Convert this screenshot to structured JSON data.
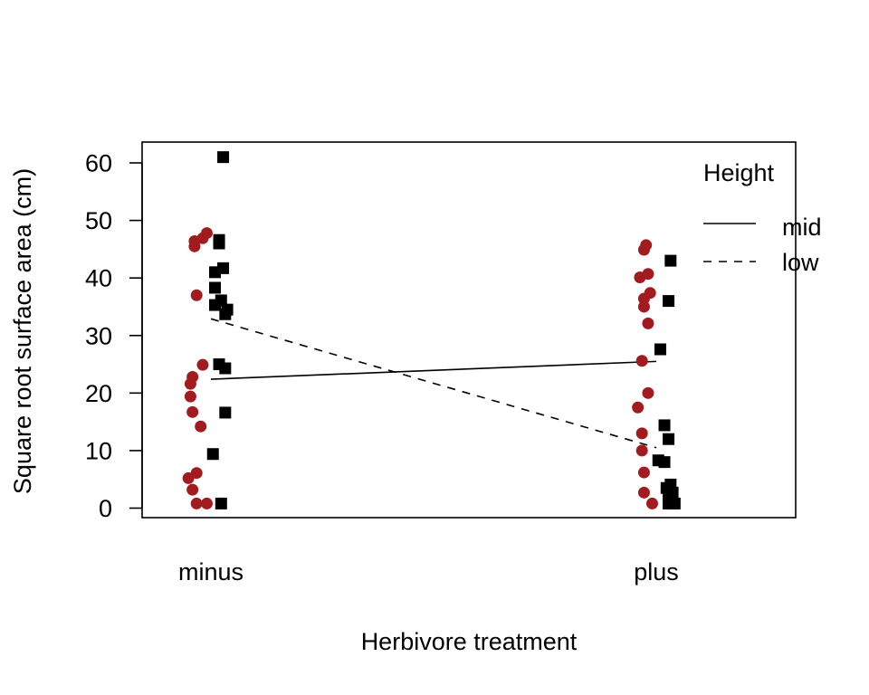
{
  "chart_data": {
    "type": "scatter",
    "title": "",
    "xlabel": "Herbivore treatment",
    "ylabel": "Square root surface area (cm)",
    "categories": [
      "minus",
      "plus"
    ],
    "ylim": [
      -1,
      64
    ],
    "yticks": [
      0,
      10,
      20,
      30,
      40,
      50,
      60
    ],
    "grid": false,
    "legend": {
      "title": "Height",
      "position": "top-right",
      "entries": [
        {
          "label": "mid",
          "line": "solid"
        },
        {
          "label": "low",
          "line": "dashed"
        }
      ]
    },
    "series": [
      {
        "name": "mid",
        "marker": "circle",
        "color": "#A11B1F",
        "line": "solid",
        "mean_line": [
          22.4,
          25.5
        ],
        "points": [
          {
            "category": "minus",
            "jitter": -0.08,
            "value": 46.4
          },
          {
            "category": "minus",
            "jitter": -0.08,
            "value": 45.5
          },
          {
            "category": "minus",
            "jitter": -0.04,
            "value": 46.9
          },
          {
            "category": "minus",
            "jitter": -0.02,
            "value": 47.8
          },
          {
            "category": "minus",
            "jitter": -0.07,
            "value": 37.0
          },
          {
            "category": "minus",
            "jitter": -0.04,
            "value": 24.9
          },
          {
            "category": "minus",
            "jitter": -0.09,
            "value": 22.8
          },
          {
            "category": "minus",
            "jitter": -0.1,
            "value": 21.6
          },
          {
            "category": "minus",
            "jitter": -0.1,
            "value": 19.4
          },
          {
            "category": "minus",
            "jitter": -0.09,
            "value": 16.7
          },
          {
            "category": "minus",
            "jitter": -0.05,
            "value": 14.2
          },
          {
            "category": "minus",
            "jitter": -0.11,
            "value": 5.2
          },
          {
            "category": "minus",
            "jitter": -0.07,
            "value": 6.1
          },
          {
            "category": "minus",
            "jitter": -0.09,
            "value": 3.2
          },
          {
            "category": "minus",
            "jitter": -0.07,
            "value": 0.8
          },
          {
            "category": "minus",
            "jitter": -0.02,
            "value": 0.8
          },
          {
            "category": "plus",
            "jitter": -0.06,
            "value": 44.9
          },
          {
            "category": "plus",
            "jitter": -0.05,
            "value": 45.7
          },
          {
            "category": "plus",
            "jitter": -0.08,
            "value": 40.1
          },
          {
            "category": "plus",
            "jitter": -0.04,
            "value": 40.7
          },
          {
            "category": "plus",
            "jitter": -0.06,
            "value": 36.4
          },
          {
            "category": "plus",
            "jitter": -0.03,
            "value": 37.4
          },
          {
            "category": "plus",
            "jitter": -0.06,
            "value": 35.0
          },
          {
            "category": "plus",
            "jitter": -0.04,
            "value": 32.1
          },
          {
            "category": "plus",
            "jitter": -0.07,
            "value": 25.6
          },
          {
            "category": "plus",
            "jitter": -0.04,
            "value": 20.0
          },
          {
            "category": "plus",
            "jitter": -0.09,
            "value": 17.5
          },
          {
            "category": "plus",
            "jitter": -0.07,
            "value": 13.0
          },
          {
            "category": "plus",
            "jitter": -0.07,
            "value": 10.0
          },
          {
            "category": "plus",
            "jitter": -0.06,
            "value": 6.2
          },
          {
            "category": "plus",
            "jitter": -0.06,
            "value": 2.7
          },
          {
            "category": "plus",
            "jitter": -0.02,
            "value": 0.8
          }
        ]
      },
      {
        "name": "low",
        "marker": "square",
        "color": "#000000",
        "line": "dashed",
        "mean_line": [
          32.9,
          10.5
        ],
        "points": [
          {
            "category": "minus",
            "jitter": 0.06,
            "value": 61.0
          },
          {
            "category": "minus",
            "jitter": 0.04,
            "value": 46.0
          },
          {
            "category": "minus",
            "jitter": 0.04,
            "value": 46.6
          },
          {
            "category": "minus",
            "jitter": 0.06,
            "value": 41.7
          },
          {
            "category": "minus",
            "jitter": 0.02,
            "value": 41.0
          },
          {
            "category": "minus",
            "jitter": 0.02,
            "value": 38.3
          },
          {
            "category": "minus",
            "jitter": 0.05,
            "value": 36.1
          },
          {
            "category": "minus",
            "jitter": 0.02,
            "value": 35.3
          },
          {
            "category": "minus",
            "jitter": 0.08,
            "value": 34.5
          },
          {
            "category": "minus",
            "jitter": 0.07,
            "value": 33.7
          },
          {
            "category": "minus",
            "jitter": 0.04,
            "value": 25.0
          },
          {
            "category": "minus",
            "jitter": 0.07,
            "value": 24.3
          },
          {
            "category": "minus",
            "jitter": 0.07,
            "value": 16.6
          },
          {
            "category": "minus",
            "jitter": 0.01,
            "value": 9.4
          },
          {
            "category": "minus",
            "jitter": 0.05,
            "value": 0.8
          },
          {
            "category": "plus",
            "jitter": 0.07,
            "value": 43.0
          },
          {
            "category": "plus",
            "jitter": 0.06,
            "value": 36.0
          },
          {
            "category": "plus",
            "jitter": 0.02,
            "value": 27.6
          },
          {
            "category": "plus",
            "jitter": 0.04,
            "value": 14.4
          },
          {
            "category": "plus",
            "jitter": 0.06,
            "value": 12.0
          },
          {
            "category": "plus",
            "jitter": 0.01,
            "value": 8.3
          },
          {
            "category": "plus",
            "jitter": 0.04,
            "value": 8.0
          },
          {
            "category": "plus",
            "jitter": 0.07,
            "value": 4.1
          },
          {
            "category": "plus",
            "jitter": 0.05,
            "value": 3.5
          },
          {
            "category": "plus",
            "jitter": 0.08,
            "value": 2.7
          },
          {
            "category": "plus",
            "jitter": 0.06,
            "value": 2.1
          },
          {
            "category": "plus",
            "jitter": 0.06,
            "value": 0.8
          },
          {
            "category": "plus",
            "jitter": 0.09,
            "value": 0.8
          },
          {
            "category": "plus",
            "jitter": 0.08,
            "value": 0.8
          }
        ]
      }
    ]
  }
}
